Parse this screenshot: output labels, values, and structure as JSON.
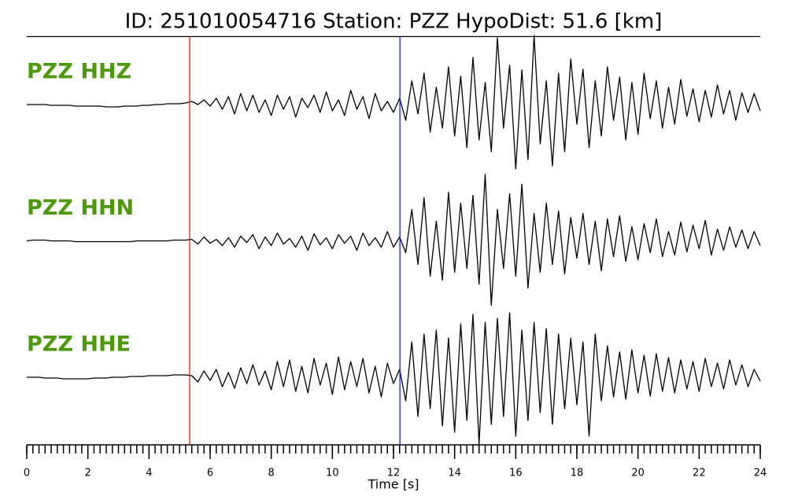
{
  "chart_data": {
    "type": "line",
    "title": "ID: 251010054716   Station: PZZ   HypoDist:    51.6 [km]",
    "x_label": "Time [s]",
    "xlim": [
      0,
      24
    ],
    "xticks": [
      0,
      2,
      4,
      6,
      8,
      10,
      12,
      14,
      16,
      18,
      20,
      22,
      24
    ],
    "xminor_step": 0.2,
    "ylim": [
      -90,
      90
    ],
    "label_color": "#4a9a0a",
    "markers": [
      {
        "x": 5.33,
        "color": "#e8201a"
      },
      {
        "x": 12.21,
        "color": "#2020d0"
      }
    ],
    "x": [
      0,
      0.2,
      0.4,
      0.6,
      0.8,
      1,
      1.2,
      1.4,
      1.6,
      1.8,
      2,
      2.2,
      2.4,
      2.6,
      2.8,
      3,
      3.2,
      3.4,
      3.6,
      3.8,
      4,
      4.2,
      4.4,
      4.6,
      4.8,
      5,
      5.2,
      5.4,
      5.6,
      5.8,
      6,
      6.2,
      6.4,
      6.6,
      6.8,
      7,
      7.2,
      7.4,
      7.6,
      7.8,
      8,
      8.2,
      8.4,
      8.6,
      8.8,
      9,
      9.2,
      9.4,
      9.6,
      9.8,
      10,
      10.2,
      10.4,
      10.6,
      10.8,
      11,
      11.2,
      11.4,
      11.6,
      11.8,
      12,
      12.2,
      12.4,
      12.6,
      12.8,
      13,
      13.2,
      13.4,
      13.6,
      13.8,
      14,
      14.2,
      14.4,
      14.6,
      14.8,
      15,
      15.2,
      15.4,
      15.6,
      15.8,
      16,
      16.2,
      16.4,
      16.6,
      16.8,
      17,
      17.2,
      17.4,
      17.6,
      17.8,
      18,
      18.2,
      18.4,
      18.6,
      18.8,
      19,
      19.2,
      19.4,
      19.6,
      19.8,
      20,
      20.2,
      20.4,
      20.6,
      20.8,
      21,
      21.2,
      21.4,
      21.6,
      21.8,
      22,
      22.2,
      22.4,
      22.6,
      22.8,
      23,
      23.2,
      23.4,
      23.6,
      23.8,
      24
    ],
    "series": [
      {
        "name": "PZZ HHZ",
        "color": "#000000",
        "values": [
          0,
          0,
          0,
          0,
          -1,
          -1,
          -1,
          -1,
          -2,
          -2,
          -2,
          -2,
          -2,
          -3,
          -3,
          -3,
          -2,
          -2,
          -2,
          -1,
          -1,
          0,
          0,
          1,
          1,
          1,
          2,
          4,
          0,
          6,
          -2,
          8,
          -6,
          10,
          -12,
          14,
          -8,
          12,
          -10,
          6,
          -14,
          12,
          -6,
          10,
          -16,
          8,
          -4,
          12,
          -10,
          16,
          -8,
          6,
          -14,
          18,
          -6,
          10,
          -18,
          14,
          -8,
          4,
          -10,
          8,
          -20,
          30,
          -12,
          40,
          -35,
          22,
          -30,
          48,
          -40,
          36,
          -55,
          60,
          -45,
          28,
          -60,
          85,
          -30,
          50,
          -82,
          44,
          -70,
          88,
          -50,
          30,
          -78,
          40,
          -60,
          58,
          -25,
          45,
          -55,
          30,
          -40,
          48,
          -20,
          35,
          -45,
          28,
          -38,
          40,
          -18,
          30,
          -30,
          22,
          -25,
          32,
          -15,
          20,
          -22,
          18,
          -16,
          25,
          -12,
          18,
          -20,
          15,
          -10,
          14,
          -8
        ]
      },
      {
        "name": "PZZ HHN",
        "color": "#000000",
        "values": [
          0,
          1,
          1,
          1,
          0,
          0,
          0,
          0,
          -1,
          -1,
          -1,
          -1,
          -1,
          -1,
          -1,
          -1,
          -1,
          -1,
          0,
          0,
          0,
          0,
          0,
          0,
          1,
          1,
          1,
          2,
          -4,
          5,
          -3,
          2,
          -6,
          4,
          -8,
          6,
          -2,
          8,
          -10,
          5,
          -6,
          10,
          -4,
          3,
          -8,
          6,
          -12,
          9,
          -5,
          4,
          -10,
          8,
          -3,
          6,
          -12,
          10,
          -6,
          4,
          -8,
          12,
          -8,
          5,
          -15,
          40,
          -30,
          55,
          -45,
          25,
          -50,
          62,
          -40,
          48,
          -35,
          58,
          -55,
          85,
          -82,
          40,
          -35,
          60,
          -45,
          72,
          -60,
          35,
          -40,
          48,
          -30,
          38,
          -42,
          30,
          -22,
          35,
          -30,
          25,
          -38,
          28,
          -20,
          32,
          -26,
          18,
          -24,
          22,
          -15,
          28,
          -20,
          12,
          -18,
          24,
          -14,
          20,
          -10,
          26,
          -18,
          15,
          -12,
          18,
          -8,
          14,
          -10,
          12,
          -6
        ]
      },
      {
        "name": "PZZ HHE",
        "color": "#000000",
        "values": [
          0,
          0,
          0,
          -1,
          -1,
          -1,
          -2,
          -2,
          -2,
          -2,
          -2,
          -1,
          -1,
          -1,
          0,
          0,
          0,
          1,
          1,
          1,
          2,
          2,
          2,
          2,
          3,
          3,
          3,
          2,
          -6,
          8,
          -4,
          10,
          -12,
          6,
          -14,
          12,
          -8,
          16,
          -10,
          8,
          -16,
          20,
          -12,
          22,
          -18,
          14,
          -20,
          24,
          -10,
          18,
          -22,
          26,
          -16,
          20,
          -12,
          24,
          -20,
          14,
          -25,
          18,
          -8,
          10,
          -30,
          45,
          -50,
          55,
          -40,
          60,
          -62,
          50,
          -70,
          68,
          -55,
          80,
          -85,
          70,
          -60,
          75,
          -50,
          82,
          -75,
          60,
          -55,
          70,
          -45,
          62,
          -60,
          55,
          -40,
          50,
          -35,
          45,
          -75,
          55,
          -30,
          40,
          -25,
          32,
          -28,
          35,
          -20,
          28,
          -24,
          30,
          -18,
          25,
          -20,
          22,
          -15,
          20,
          -18,
          24,
          -12,
          18,
          -15,
          22,
          -10,
          16,
          -12,
          10,
          -5
        ]
      }
    ]
  }
}
